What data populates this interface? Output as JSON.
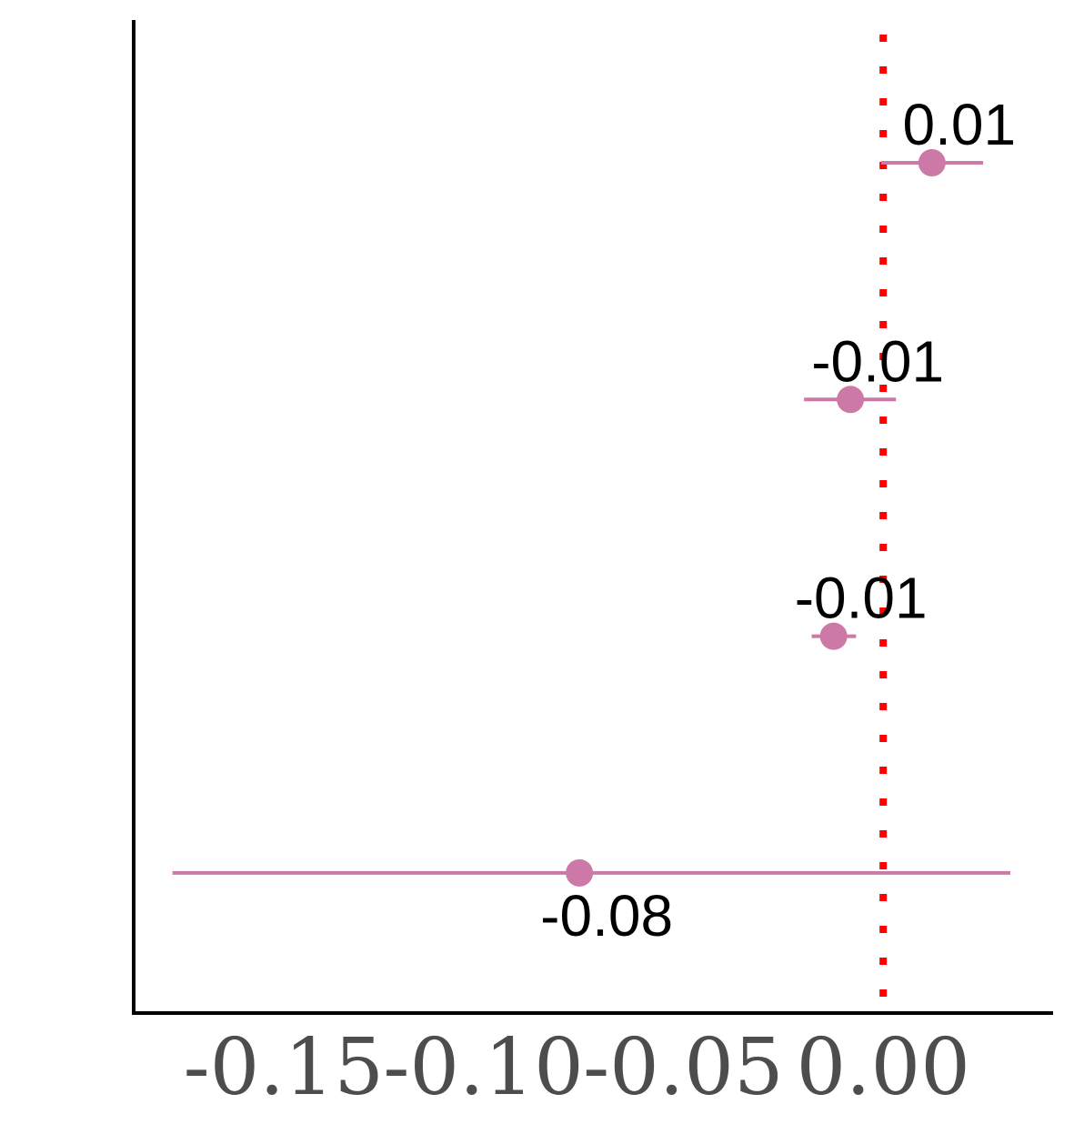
{
  "chart_data": {
    "type": "scatter",
    "title": "",
    "xlabel": "",
    "ylabel": "",
    "xlim": [
      -0.1875,
      0.0425
    ],
    "xticks": [
      {
        "value": -0.15,
        "label": "-0.15"
      },
      {
        "value": -0.1,
        "label": "-0.10"
      },
      {
        "value": -0.05,
        "label": "-0.05"
      },
      {
        "value": 0.0,
        "label": "0.00"
      }
    ],
    "reference_line": {
      "x": 0,
      "style": "dotted",
      "color": "#ff0000"
    },
    "point_color": "#cc79a7",
    "points": [
      {
        "estimate": 0.0122,
        "lower": -0.0005,
        "upper": 0.025,
        "label": "0.01",
        "label_position": "above"
      },
      {
        "estimate": -0.0082,
        "lower": -0.0198,
        "upper": 0.0032,
        "label": "-0.01",
        "label_position": "above"
      },
      {
        "estimate": -0.0124,
        "lower": -0.0179,
        "upper": -0.0068,
        "label": "-0.01",
        "label_position": "above"
      },
      {
        "estimate": -0.076,
        "lower": -0.1778,
        "upper": 0.0318,
        "label": "-0.08",
        "label_position": "below"
      }
    ]
  }
}
